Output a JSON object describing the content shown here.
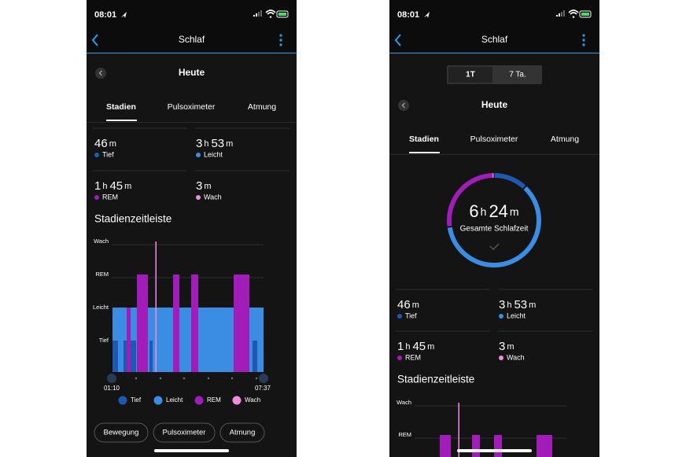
{
  "screens": [
    {
      "status_time": "08:01",
      "header_title": "Schlaf",
      "date_title": "Heute",
      "tabs": [
        "Stadien",
        "Pulsoximeter",
        "Atmung"
      ],
      "stats": [
        {
          "minutes": 46,
          "minutes_unit": "m",
          "label": "Tief",
          "color": "#1d59b3"
        },
        {
          "hours": 3,
          "hours_unit": "h",
          "minutes": 53,
          "minutes_unit": "m",
          "label": "Leicht",
          "color": "#3b8de3"
        },
        {
          "hours": 1,
          "hours_unit": "h",
          "minutes": 45,
          "minutes_unit": "m",
          "label": "REM",
          "color": "#a11cb8"
        },
        {
          "minutes": 3,
          "minutes_unit": "m",
          "label": "Wach",
          "color": "#f08be0"
        }
      ],
      "timeline": {
        "title": "Stadienzeitleiste",
        "levels": [
          "Wach",
          "REM",
          "Leicht",
          "Tief"
        ],
        "start": "01:10",
        "end": "07:37"
      },
      "legend": [
        "Tief",
        "Leicht",
        "REM",
        "Wach"
      ],
      "buttons": [
        "Bewegung",
        "Pulsoximeter",
        "Atmung"
      ]
    },
    {
      "status_time": "08:01",
      "header_title": "Schlaf",
      "range_options": [
        "1T",
        "7 Ta."
      ],
      "date_title": "Heute",
      "tabs": [
        "Stadien",
        "Pulsoximeter",
        "Atmung"
      ],
      "total": {
        "hours": 6,
        "hours_unit": "h",
        "minutes": 24,
        "minutes_unit": "m",
        "label": "Gesamte Schlafzeit"
      },
      "stats": [
        {
          "minutes": 46,
          "minutes_unit": "m",
          "label": "Tief",
          "color": "#1d59b3"
        },
        {
          "hours": 3,
          "hours_unit": "h",
          "minutes": 53,
          "minutes_unit": "m",
          "label": "Leicht",
          "color": "#3b8de3"
        },
        {
          "hours": 1,
          "hours_unit": "h",
          "minutes": 45,
          "minutes_unit": "m",
          "label": "REM",
          "color": "#a11cb8"
        },
        {
          "minutes": 3,
          "minutes_unit": "m",
          "label": "Wach",
          "color": "#f08be0"
        }
      ],
      "timeline": {
        "title": "Stadienzeitleiste",
        "levels": [
          "Wach",
          "REM"
        ]
      }
    }
  ]
}
